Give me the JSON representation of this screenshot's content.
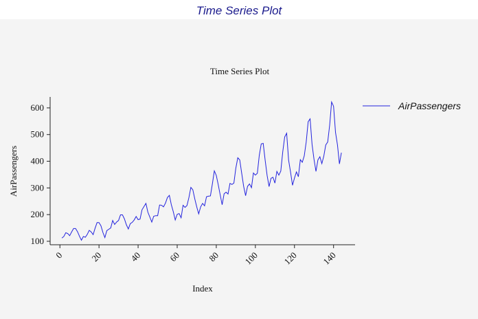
{
  "header": {
    "title": "Time Series Plot"
  },
  "chart_data": {
    "type": "line",
    "title": "Time Series Plot",
    "x_label": "Index",
    "y_label": "AirPassengers",
    "x": [
      1,
      2,
      3,
      4,
      5,
      6,
      7,
      8,
      9,
      10,
      11,
      12,
      13,
      14,
      15,
      16,
      17,
      18,
      19,
      20,
      21,
      22,
      23,
      24,
      25,
      26,
      27,
      28,
      29,
      30,
      31,
      32,
      33,
      34,
      35,
      36,
      37,
      38,
      39,
      40,
      41,
      42,
      43,
      44,
      45,
      46,
      47,
      48,
      49,
      50,
      51,
      52,
      53,
      54,
      55,
      56,
      57,
      58,
      59,
      60,
      61,
      62,
      63,
      64,
      65,
      66,
      67,
      68,
      69,
      70,
      71,
      72,
      73,
      74,
      75,
      76,
      77,
      78,
      79,
      80,
      81,
      82,
      83,
      84,
      85,
      86,
      87,
      88,
      89,
      90,
      91,
      92,
      93,
      94,
      95,
      96,
      97,
      98,
      99,
      100,
      101,
      102,
      103,
      104,
      105,
      106,
      107,
      108,
      109,
      110,
      111,
      112,
      113,
      114,
      115,
      116,
      117,
      118,
      119,
      120,
      121,
      122,
      123,
      124,
      125,
      126,
      127,
      128,
      129,
      130,
      131,
      132,
      133,
      134,
      135,
      136,
      137,
      138,
      139,
      140,
      141,
      142,
      143,
      144
    ],
    "series": [
      {
        "name": "AirPassengers",
        "color": "#2222dd",
        "values": [
          112,
          118,
          132,
          129,
          121,
          135,
          148,
          148,
          136,
          119,
          104,
          118,
          115,
          126,
          141,
          135,
          125,
          149,
          170,
          170,
          158,
          133,
          114,
          140,
          145,
          150,
          178,
          163,
          172,
          178,
          199,
          199,
          184,
          162,
          146,
          166,
          171,
          180,
          193,
          181,
          183,
          218,
          230,
          242,
          209,
          191,
          172,
          194,
          196,
          196,
          236,
          235,
          229,
          243,
          264,
          272,
          237,
          211,
          180,
          201,
          204,
          188,
          235,
          227,
          234,
          264,
          302,
          293,
          259,
          229,
          203,
          229,
          242,
          233,
          267,
          269,
          270,
          315,
          364,
          347,
          312,
          274,
          237,
          278,
          284,
          277,
          317,
          313,
          318,
          374,
          413,
          405,
          355,
          306,
          271,
          306,
          315,
          301,
          356,
          348,
          355,
          422,
          465,
          467,
          404,
          347,
          305,
          336,
          340,
          318,
          362,
          348,
          363,
          435,
          491,
          505,
          404,
          359,
          310,
          337,
          360,
          342,
          406,
          396,
          420,
          472,
          548,
          559,
          463,
          407,
          362,
          405,
          417,
          391,
          419,
          461,
          472,
          535,
          622,
          606,
          508,
          461,
          390,
          432
        ]
      }
    ],
    "xlim": [
      -5,
      151
    ],
    "ylim": [
      87,
      641
    ],
    "xticks": [
      0,
      20,
      40,
      60,
      80,
      100,
      120,
      140
    ],
    "yticks": [
      100,
      200,
      300,
      400,
      500,
      600
    ]
  }
}
